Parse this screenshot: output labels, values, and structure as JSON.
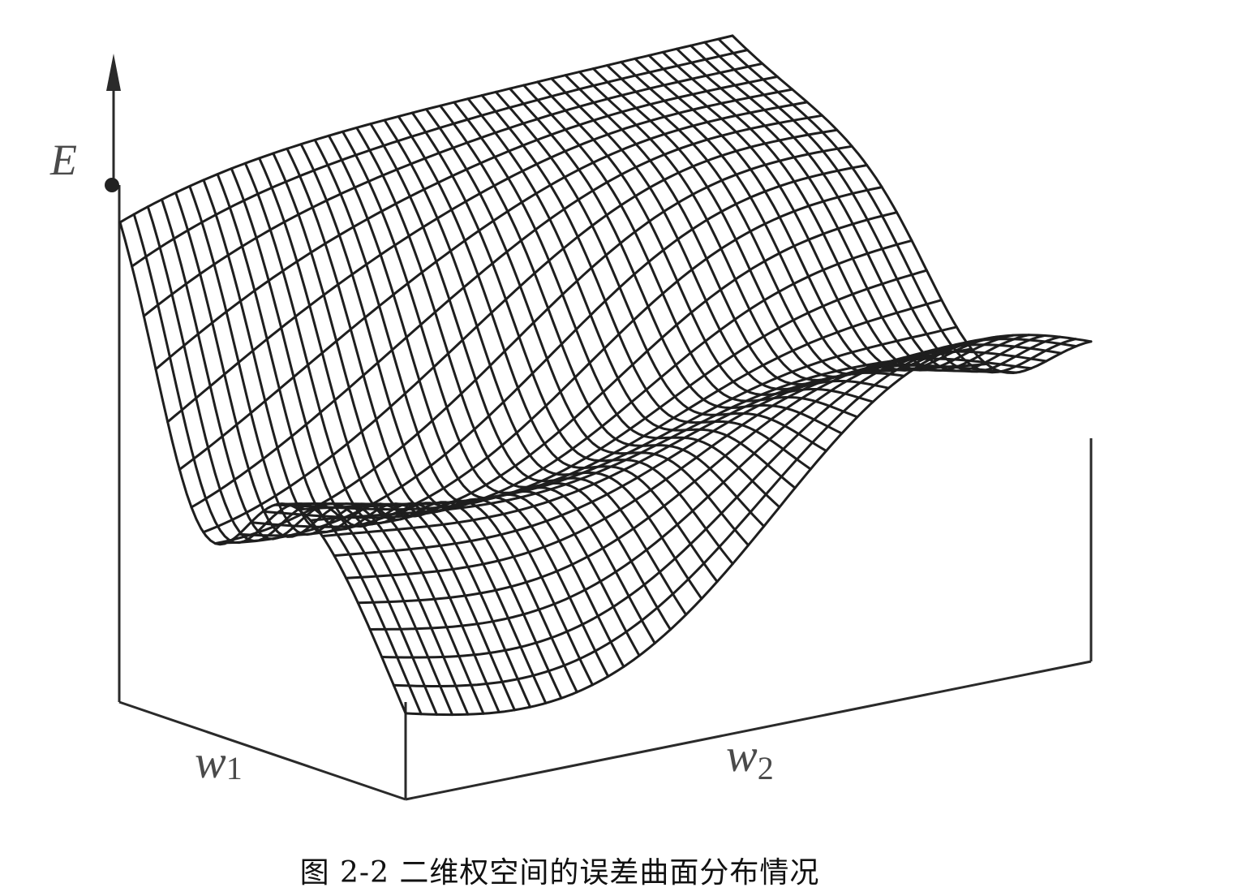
{
  "figure": {
    "axis_e": "E",
    "axis_w1": {
      "base": "w",
      "sub": "1"
    },
    "axis_w2": {
      "base": "w",
      "sub": "2"
    }
  },
  "caption": "图 2-2  二维权空间的误差曲面分布情况",
  "style": {
    "ink": "#1e1e1e",
    "paper": "#ffffff"
  }
}
